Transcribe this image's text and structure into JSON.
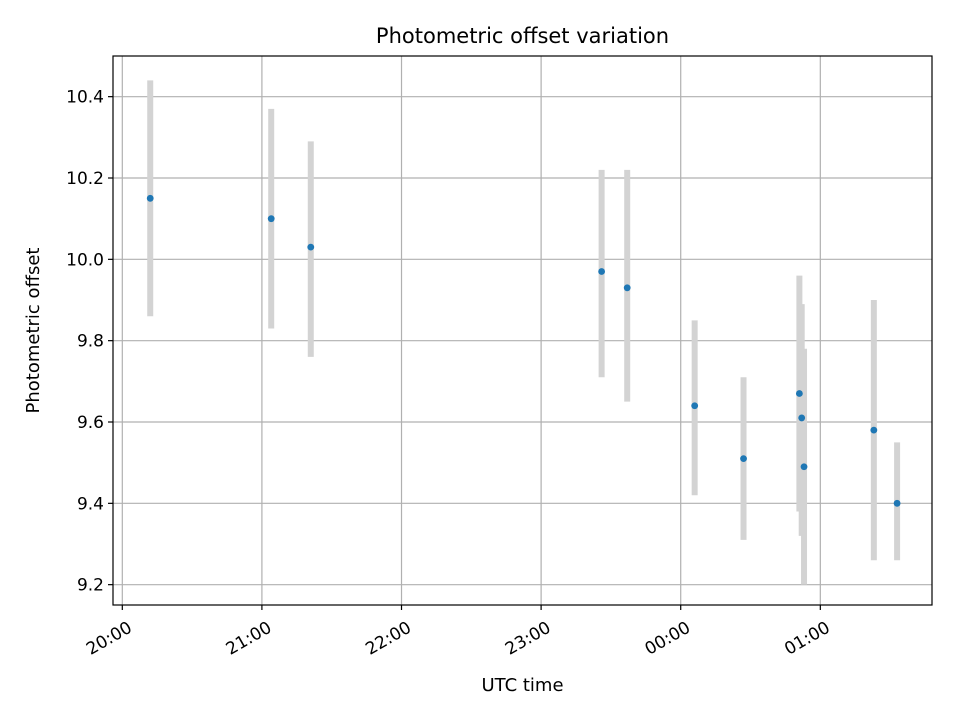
{
  "chart_data": {
    "type": "scatter",
    "title": "Photometric offset variation",
    "xlabel": "UTC time",
    "ylabel": "Photometric offset",
    "x_tick_labels": [
      "20:00",
      "21:00",
      "22:00",
      "23:00",
      "00:00",
      "01:00"
    ],
    "y_tick_labels": [
      "9.2",
      "9.4",
      "9.6",
      "9.8",
      "10.0",
      "10.2",
      "10.4"
    ],
    "x_ticks": [
      "20:00",
      "21:00",
      "22:00",
      "23:00",
      "00:00",
      "01:00"
    ],
    "y_ticks": [
      9.2,
      9.4,
      9.6,
      9.8,
      10.0,
      10.2,
      10.4
    ],
    "xlim": [
      "19:56",
      "01:48"
    ],
    "ylim": [
      9.15,
      10.5
    ],
    "grid": true,
    "series": [
      {
        "marker_color": "#1f77b4",
        "errorbar_color": "#d3d3d3",
        "points": [
          {
            "time": "20:12",
            "y": 10.15,
            "ylow": 9.86,
            "yhigh": 10.44
          },
          {
            "time": "21:04",
            "y": 10.1,
            "ylow": 9.83,
            "yhigh": 10.37
          },
          {
            "time": "21:21",
            "y": 10.03,
            "ylow": 9.76,
            "yhigh": 10.29
          },
          {
            "time": "23:26",
            "y": 9.97,
            "ylow": 9.71,
            "yhigh": 10.22
          },
          {
            "time": "23:37",
            "y": 9.93,
            "ylow": 9.65,
            "yhigh": 10.22
          },
          {
            "time": "00:06",
            "y": 9.64,
            "ylow": 9.42,
            "yhigh": 9.85
          },
          {
            "time": "00:27",
            "y": 9.51,
            "ylow": 9.31,
            "yhigh": 9.71
          },
          {
            "time": "00:51",
            "y": 9.67,
            "ylow": 9.38,
            "yhigh": 9.96
          },
          {
            "time": "00:52",
            "y": 9.61,
            "ylow": 9.32,
            "yhigh": 9.89
          },
          {
            "time": "00:53",
            "y": 9.49,
            "ylow": 9.2,
            "yhigh": 9.78
          },
          {
            "time": "01:23",
            "y": 9.58,
            "ylow": 9.26,
            "yhigh": 9.9
          },
          {
            "time": "01:33",
            "y": 9.4,
            "ylow": 9.26,
            "yhigh": 9.55
          }
        ]
      }
    ]
  }
}
